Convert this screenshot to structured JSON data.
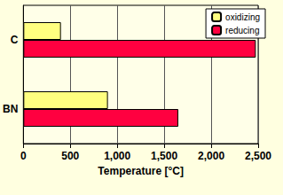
{
  "chart_data": {
    "type": "bar",
    "orientation": "horizontal",
    "categories": [
      "C",
      "BN"
    ],
    "series": [
      {
        "name": "oxidizing",
        "color": "#ffff80",
        "values": [
          400,
          900
        ]
      },
      {
        "name": "reducing",
        "color": "#ff0040",
        "values": [
          2475,
          1650
        ]
      }
    ],
    "xlabel": "Temperature [°C]",
    "xlim": [
      0,
      2500
    ],
    "xticks": [
      0,
      500,
      1000,
      1500,
      2000,
      2500
    ],
    "grid": true,
    "legend": "upper right"
  }
}
